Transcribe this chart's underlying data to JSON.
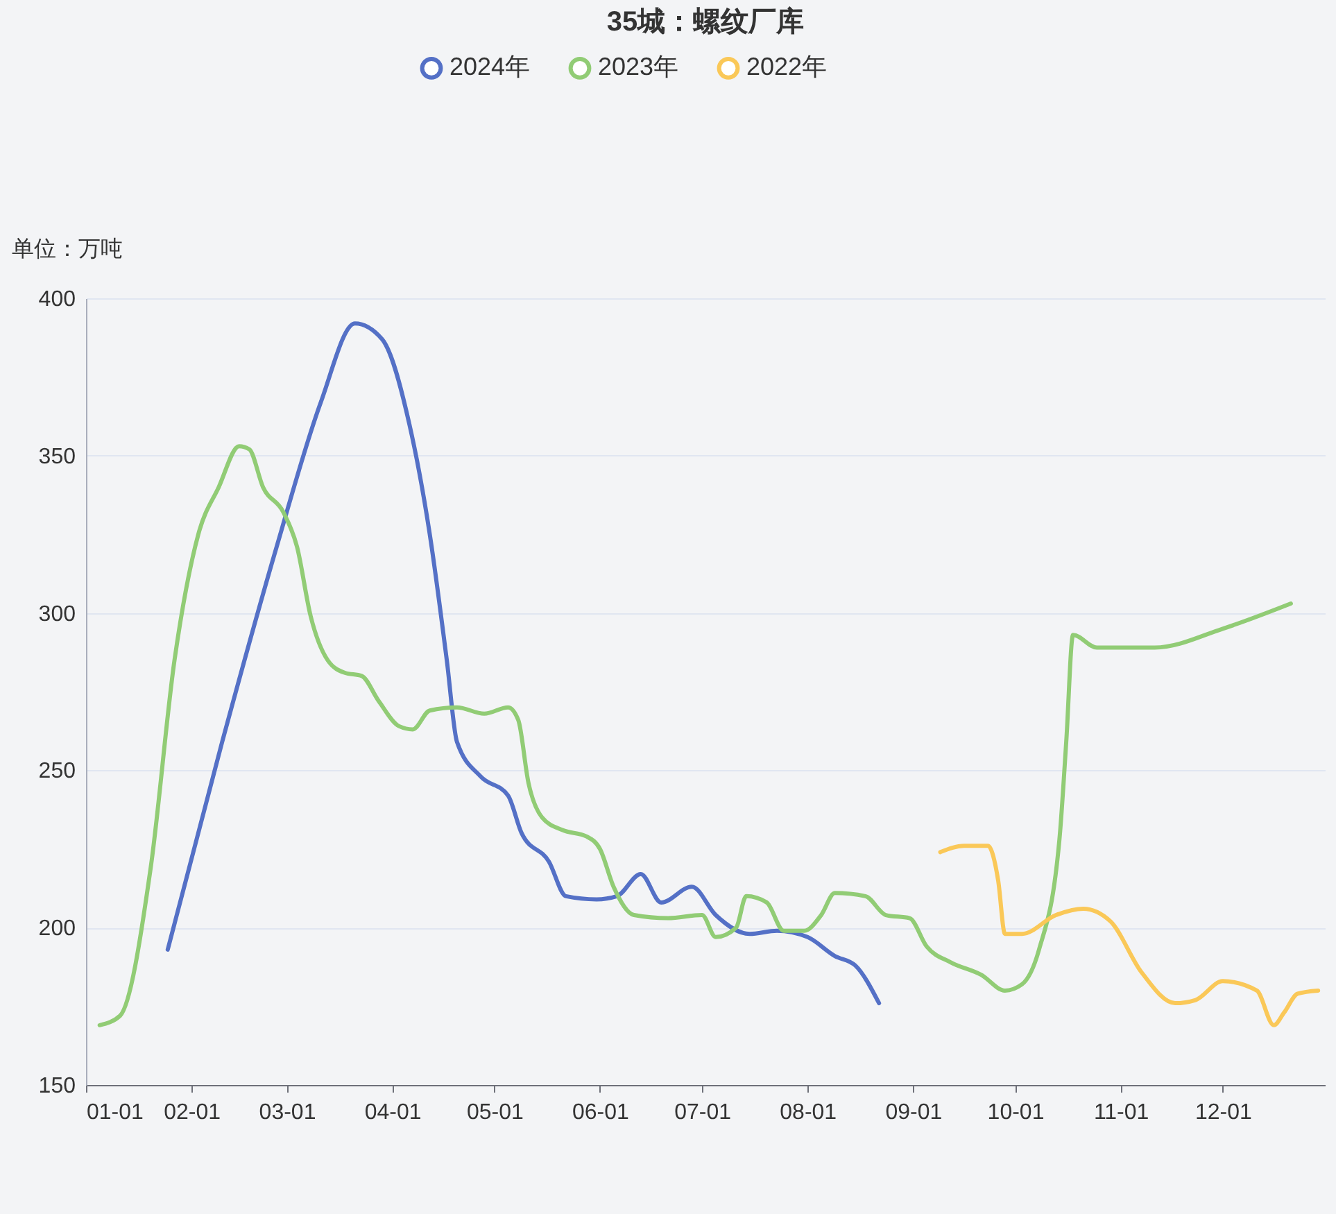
{
  "chart_data": {
    "type": "line",
    "title": "35城：螺纹厂库",
    "ylabel": "单位：万吨",
    "xlim": [
      "--01-01",
      "--12-31"
    ],
    "xticks": [
      {
        "value": "--01-01",
        "label": "01-01"
      },
      {
        "value": "--02-01",
        "label": "02-01"
      },
      {
        "value": "--03-01",
        "label": "03-01"
      },
      {
        "value": "--04-01",
        "label": "04-01"
      },
      {
        "value": "--05-01",
        "label": "05-01"
      },
      {
        "value": "--06-01",
        "label": "06-01"
      },
      {
        "value": "--07-01",
        "label": "07-01"
      },
      {
        "value": "--08-01",
        "label": "08-01"
      },
      {
        "value": "--09-01",
        "label": "09-01"
      },
      {
        "value": "--10-01",
        "label": "10-01"
      },
      {
        "value": "--11-01",
        "label": "11-01"
      },
      {
        "value": "--12-01",
        "label": "12-01"
      }
    ],
    "ylim": [
      150,
      400
    ],
    "yticks": [
      150,
      200,
      250,
      300,
      350,
      400
    ],
    "grid": "y",
    "legend": "top",
    "marker": "none",
    "line_style": "solid",
    "series": [
      {
        "name": "2024年",
        "color": "#5470c6",
        "x": [
          "--01-25",
          "--02-10",
          "--02-26",
          "--03-11",
          "--03-21",
          "--03-29",
          "--04-06",
          "--04-12",
          "--04-17",
          "--04-20",
          "--04-27",
          "--05-05",
          "--05-09",
          "--05-17",
          "--05-22",
          "--05-31",
          "--06-06",
          "--06-13",
          "--06-19",
          "--06-28",
          "--07-05",
          "--07-15",
          "--07-23",
          "--08-01",
          "--08-09",
          "--08-15",
          "--08-22"
        ],
        "values": [
          193,
          259,
          321,
          367,
          392,
          387,
          360,
          325,
          285,
          259,
          248,
          242,
          230,
          221,
          210,
          209,
          210,
          217,
          208,
          213,
          204,
          198,
          199,
          197,
          191,
          188,
          176
        ]
      },
      {
        "name": "2023年",
        "color": "#91cc75",
        "x": [
          "--01-05",
          "--01-11",
          "--01-20",
          "--01-27",
          "--02-03",
          "--02-09",
          "--02-15",
          "--02-18",
          "--02-22",
          "--02-28",
          "--03-04",
          "--03-08",
          "--03-13",
          "--03-18",
          "--03-23",
          "--03-28",
          "--04-03",
          "--04-07",
          "--04-12",
          "--04-20",
          "--04-28",
          "--05-05",
          "--05-08",
          "--05-11",
          "--05-15",
          "--05-21",
          "--05-28",
          "--06-01",
          "--06-05",
          "--06-11",
          "--06-21",
          "--07-01",
          "--07-05",
          "--07-11",
          "--07-14",
          "--07-20",
          "--07-25",
          "--07-31",
          "--08-05",
          "--08-09",
          "--08-18",
          "--08-24",
          "--08-31",
          "--09-05",
          "--09-12",
          "--09-21",
          "--09-28",
          "--10-03",
          "--10-08",
          "--10-14",
          "--10-16",
          "--10-18",
          "--10-25",
          "--11-11",
          "--12-01",
          "--12-21"
        ],
        "values": [
          169,
          172,
          219,
          285,
          325,
          340,
          353,
          352,
          340,
          332,
          321,
          299,
          285,
          281,
          280,
          272,
          264,
          263,
          269,
          270,
          268,
          270,
          266,
          246,
          235,
          231,
          229,
          225,
          213,
          204,
          203,
          204,
          197,
          200,
          210,
          208,
          199,
          199,
          204,
          211,
          210,
          204,
          203,
          194,
          189,
          185,
          180,
          182,
          193,
          228,
          259,
          293,
          289,
          289,
          295,
          303
        ]
      },
      {
        "name": "2022年",
        "color": "#fac858",
        "x": [
          "--09-09",
          "--09-16",
          "--09-23",
          "--09-26",
          "--09-28",
          "--10-03",
          "--10-13",
          "--10-21",
          "--10-29",
          "--11-07",
          "--11-17",
          "--11-23",
          "--12-01",
          "--12-11",
          "--12-16",
          "--12-19",
          "--12-23",
          "--12-29"
        ],
        "values": [
          224,
          226,
          226,
          215,
          198,
          198,
          204,
          206,
          202,
          186,
          176,
          177,
          183,
          180,
          169,
          173,
          179,
          180
        ]
      }
    ]
  }
}
